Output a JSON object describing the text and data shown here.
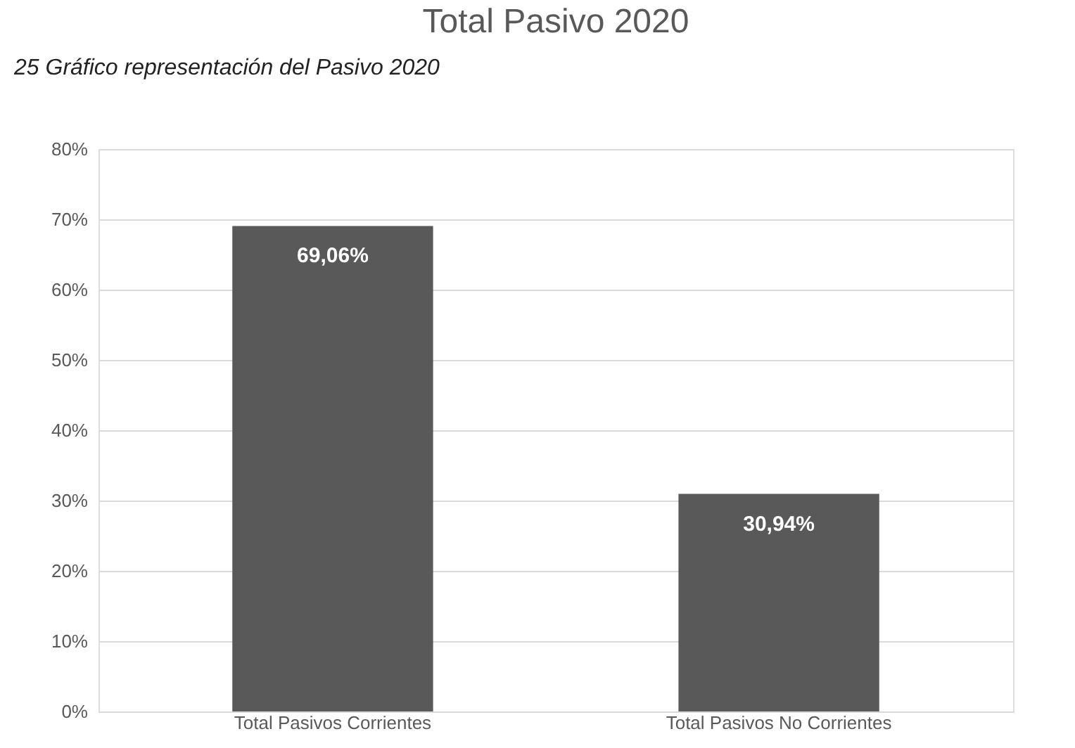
{
  "chart_data": {
    "type": "bar",
    "title": "Total Pasivo 2020",
    "annotations": [
      "25 Gráfico representación del Pasivo 2020"
    ],
    "categories": [
      "Total Pasivos Corrientes",
      "Total Pasivos No Corrientes"
    ],
    "values": [
      69.06,
      30.94
    ],
    "color": "#595959",
    "value_labels": [
      "69,06%",
      "30,94%"
    ],
    "ylim": [
      0,
      80
    ],
    "yticks": [
      {
        "value": 0,
        "label": "0%"
      },
      {
        "value": 10,
        "label": "10%"
      },
      {
        "value": 20,
        "label": "20%"
      },
      {
        "value": 30,
        "label": "30%"
      },
      {
        "value": 40,
        "label": "40%"
      },
      {
        "value": 50,
        "label": "50%"
      },
      {
        "value": 60,
        "label": "60%"
      },
      {
        "value": 70,
        "label": "70%"
      },
      {
        "value": 80,
        "label": "80%"
      }
    ],
    "grid": "y"
  }
}
